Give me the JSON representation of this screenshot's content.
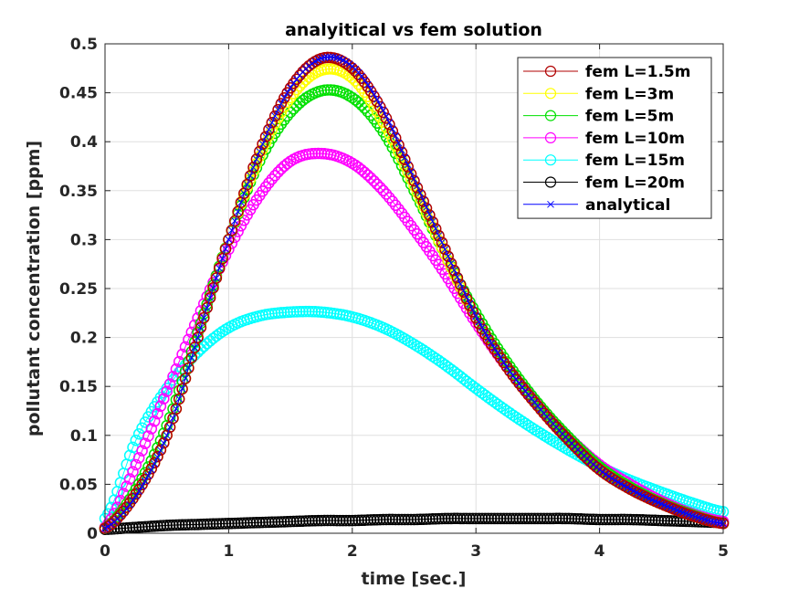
{
  "chart_data": {
    "type": "line",
    "title": "analyitical vs fem solution",
    "xlabel": "time [sec.]",
    "ylabel": "pollutant concentration [ppm]",
    "xlim": [
      0,
      5
    ],
    "ylim": [
      0,
      0.5
    ],
    "xticks": [
      0,
      1,
      2,
      3,
      4,
      5
    ],
    "yticks": [
      0,
      0.05,
      0.1,
      0.15,
      0.2,
      0.25,
      0.3,
      0.35,
      0.4,
      0.45,
      0.5
    ],
    "xtick_labels": [
      "0",
      "1",
      "2",
      "3",
      "4",
      "5"
    ],
    "ytick_labels": [
      "0",
      "0.05",
      "0.1",
      "0.15",
      "0.2",
      "0.25",
      "0.3",
      "0.35",
      "0.4",
      "0.45",
      "0.5"
    ],
    "grid": true,
    "legend_position": "top-right",
    "x": [
      0,
      0.25,
      0.5,
      0.75,
      1,
      1.25,
      1.5,
      1.75,
      2,
      2.25,
      2.5,
      2.75,
      3,
      3.25,
      3.5,
      3.75,
      4,
      4.25,
      4.5,
      4.75,
      5
    ],
    "series": [
      {
        "name": "fem L=1.5m",
        "color": "#b00000",
        "marker": "circle",
        "values": [
          0.005,
          0.04,
          0.1,
          0.2,
          0.3,
          0.39,
          0.455,
          0.485,
          0.475,
          0.43,
          0.36,
          0.29,
          0.22,
          0.17,
          0.13,
          0.095,
          0.065,
          0.045,
          0.03,
          0.018,
          0.01
        ]
      },
      {
        "name": "fem L=3m",
        "color": "#ffff00",
        "marker": "circle",
        "values": [
          0.005,
          0.04,
          0.1,
          0.2,
          0.3,
          0.385,
          0.445,
          0.473,
          0.465,
          0.42,
          0.355,
          0.285,
          0.22,
          0.17,
          0.13,
          0.095,
          0.065,
          0.045,
          0.03,
          0.018,
          0.01
        ]
      },
      {
        "name": "fem L=5m",
        "color": "#00e000",
        "marker": "circle",
        "values": [
          0.005,
          0.045,
          0.11,
          0.205,
          0.3,
          0.38,
          0.43,
          0.452,
          0.445,
          0.41,
          0.35,
          0.285,
          0.225,
          0.175,
          0.133,
          0.098,
          0.068,
          0.047,
          0.031,
          0.019,
          0.01
        ]
      },
      {
        "name": "fem L=10m",
        "color": "#ff00ff",
        "marker": "circle",
        "values": [
          0.006,
          0.07,
          0.145,
          0.22,
          0.29,
          0.345,
          0.38,
          0.388,
          0.378,
          0.35,
          0.31,
          0.265,
          0.215,
          0.17,
          0.132,
          0.098,
          0.07,
          0.05,
          0.033,
          0.02,
          0.012
        ]
      },
      {
        "name": "fem L=15m",
        "color": "#00ffff",
        "marker": "circle",
        "values": [
          0.015,
          0.095,
          0.148,
          0.185,
          0.21,
          0.222,
          0.226,
          0.226,
          0.221,
          0.21,
          0.193,
          0.172,
          0.148,
          0.125,
          0.104,
          0.085,
          0.068,
          0.054,
          0.042,
          0.031,
          0.022
        ]
      },
      {
        "name": "fem L=20m",
        "color": "#000000",
        "marker": "circle",
        "values": [
          0.004,
          0.006,
          0.008,
          0.009,
          0.01,
          0.011,
          0.012,
          0.013,
          0.013,
          0.014,
          0.014,
          0.015,
          0.015,
          0.015,
          0.015,
          0.015,
          0.014,
          0.014,
          0.013,
          0.012,
          0.011
        ]
      },
      {
        "name": "analytical",
        "color": "#0000ff",
        "marker": "x",
        "values": [
          0.005,
          0.038,
          0.1,
          0.2,
          0.3,
          0.39,
          0.455,
          0.485,
          0.477,
          0.432,
          0.362,
          0.29,
          0.222,
          0.17,
          0.13,
          0.095,
          0.065,
          0.045,
          0.03,
          0.018,
          0.01
        ]
      }
    ]
  }
}
